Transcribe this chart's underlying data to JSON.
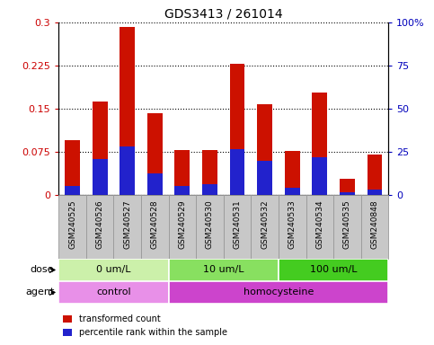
{
  "title": "GDS3413 / 261014",
  "samples": [
    "GSM240525",
    "GSM240526",
    "GSM240527",
    "GSM240528",
    "GSM240529",
    "GSM240530",
    "GSM240531",
    "GSM240532",
    "GSM240533",
    "GSM240534",
    "GSM240535",
    "GSM240848"
  ],
  "transformed_count": [
    0.095,
    0.162,
    0.292,
    0.142,
    0.078,
    0.078,
    0.228,
    0.158,
    0.076,
    0.178,
    0.028,
    0.071
  ],
  "percentile_rank_left": [
    0.015,
    0.062,
    0.085,
    0.038,
    0.015,
    0.018,
    0.08,
    0.06,
    0.013,
    0.066,
    0.005,
    0.01
  ],
  "ylim_left": [
    0,
    0.3
  ],
  "ylim_right": [
    0,
    100
  ],
  "yticks_left": [
    0,
    0.075,
    0.15,
    0.225,
    0.3
  ],
  "ytick_labels_left": [
    "0",
    "0.075",
    "0.15",
    "0.225",
    "0.3"
  ],
  "yticks_right": [
    0,
    25,
    50,
    75,
    100
  ],
  "ytick_labels_right": [
    "0",
    "25",
    "50",
    "75",
    "100%"
  ],
  "dose_groups": [
    {
      "label": "0 um/L",
      "start": 0,
      "end": 4,
      "color": "#ccf0aa"
    },
    {
      "label": "10 um/L",
      "start": 4,
      "end": 8,
      "color": "#88e060"
    },
    {
      "label": "100 um/L",
      "start": 8,
      "end": 12,
      "color": "#44cc20"
    }
  ],
  "agent_groups": [
    {
      "label": "control",
      "start": 0,
      "end": 4,
      "color": "#e890e8"
    },
    {
      "label": "homocysteine",
      "start": 4,
      "end": 12,
      "color": "#cc44cc"
    }
  ],
  "bar_color": "#cc1100",
  "percentile_color": "#2222cc",
  "dose_label": "dose",
  "agent_label": "agent",
  "legend_items": [
    {
      "label": "transformed count",
      "color": "#cc1100"
    },
    {
      "label": "percentile rank within the sample",
      "color": "#2222cc"
    }
  ],
  "grid_color": "black",
  "background_color": "#ffffff",
  "left_axis_color": "#cc0000",
  "right_axis_color": "#0000bb",
  "xtick_bg_color": "#c8c8c8",
  "xtick_edge_color": "#999999",
  "bar_width": 0.55
}
